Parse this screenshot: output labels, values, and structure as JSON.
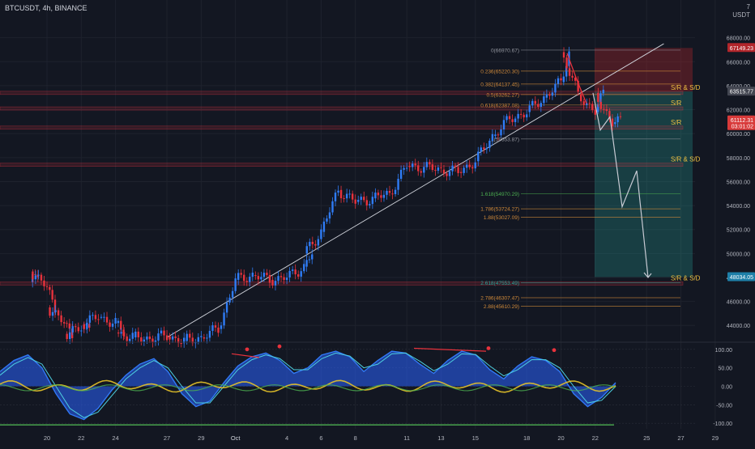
{
  "header": {
    "symbol": "BTCUSDT, 4h, BINANCE",
    "currency_top": "7",
    "currency": "USDT"
  },
  "chart_data": [
    {
      "type": "candlestick",
      "title": "BTCUSDT, 4h, BINANCE",
      "ylim": [
        42800,
        69800
      ],
      "y_ticks": [
        44000,
        46000,
        48000,
        50000,
        52000,
        54000,
        56000,
        58000,
        60000,
        62000,
        64000,
        66000,
        68000
      ],
      "x_ticks": [
        "20",
        "22",
        "24",
        "27",
        "29",
        "Oct",
        "4",
        "6",
        "8",
        "11",
        "13",
        "15",
        "18",
        "20",
        "22",
        "25",
        "27",
        "29"
      ],
      "price_series": [
        [
          "Sep 19",
          47600
        ],
        [
          "Sep 19",
          48500
        ],
        [
          "Sep 20",
          47200
        ],
        [
          "Sep 20",
          45500
        ],
        [
          "Sep 21",
          44200
        ],
        [
          "Sep 21",
          43300
        ],
        [
          "Sep 22",
          43700
        ],
        [
          "Sep 22",
          44100
        ],
        [
          "Sep 23",
          44700
        ],
        [
          "Sep 24",
          44200
        ],
        [
          "Sep 24",
          43400
        ],
        [
          "Sep 25",
          43000
        ],
        [
          "Sep 26",
          42900
        ],
        [
          "Sep 27",
          43100
        ],
        [
          "Sep 28",
          42700
        ],
        [
          "Sep 29",
          43000
        ],
        [
          "Sep 30",
          43700
        ],
        [
          "Oct 1",
          47800
        ],
        [
          "Oct 2",
          48200
        ],
        [
          "Oct 3",
          47800
        ],
        [
          "Oct 4",
          48000
        ],
        [
          "Oct 5",
          48900
        ],
        [
          "Oct 5",
          50000
        ],
        [
          "Oct 6",
          51800
        ],
        [
          "Oct 7",
          55300
        ],
        [
          "Oct 8",
          54300
        ],
        [
          "Oct 9",
          54600
        ],
        [
          "Oct 10",
          55000
        ],
        [
          "Oct 11",
          57300
        ],
        [
          "Oct 12",
          57200
        ],
        [
          "Oct 13",
          57000
        ],
        [
          "Oct 14",
          56800
        ],
        [
          "Oct 15",
          57700
        ],
        [
          "Oct 16",
          59800
        ],
        [
          "Oct 17",
          61200
        ],
        [
          "Oct 18",
          61800
        ],
        [
          "Oct 19",
          63000
        ],
        [
          "Oct 20",
          64300
        ],
        [
          "Oct 20",
          66800
        ],
        [
          "Oct 21",
          63300
        ],
        [
          "Oct 22",
          61800
        ],
        [
          "Oct 22",
          63400
        ],
        [
          "Oct 23",
          60800
        ],
        [
          "Oct 23",
          61100
        ]
      ],
      "projection": [
        [
          "Oct 22",
          63400
        ],
        [
          "Oct 23",
          60300
        ],
        [
          "Oct 24",
          61400
        ],
        [
          "Oct 25",
          53900
        ],
        [
          "Oct 26",
          56900
        ],
        [
          "Oct 27",
          48000
        ]
      ],
      "trendline": [
        [
          "Sep 27",
          43000
        ],
        [
          "Oct 26",
          67500
        ]
      ],
      "fib_levels": [
        {
          "ratio": "0",
          "value": "66970.67",
          "label": "0(66970.67)"
        },
        {
          "ratio": "0.236",
          "value": "65220.30",
          "label": "0.236(65220.30)"
        },
        {
          "ratio": "0.382",
          "value": "64137.45",
          "label": "0.382(64137.45)"
        },
        {
          "ratio": "0.5",
          "value": "63262.27",
          "label": "0.5(63262.27)"
        },
        {
          "ratio": "0.618",
          "value": "62387.08",
          "label": "0.618(62387.08)"
        },
        {
          "ratio": "1",
          "value": "59553.87",
          "label": "1(59553.87)"
        },
        {
          "ratio": "1.618",
          "value": "54970.29",
          "label": "1.618(54970.29)"
        },
        {
          "ratio": "1.786",
          "value": "53724.27",
          "label": "1.786(53724.27)"
        },
        {
          "ratio": "1.88",
          "value": "53027.09",
          "label": "1.88(53027.09)"
        },
        {
          "ratio": "2.618",
          "value": "47553.49",
          "label": "2.618(47553.49)"
        },
        {
          "ratio": "2.786",
          "value": "46307.47",
          "label": "2.786(46307.47)"
        },
        {
          "ratio": "2.88",
          "value": "45610.29",
          "label": "2.88(45610.29)"
        }
      ],
      "zones": [
        {
          "label": "S/R & S/D",
          "value": 63400,
          "color": "#f0c040"
        },
        {
          "label": "S/R",
          "value": 62100,
          "color": "#f0c040"
        },
        {
          "label": "S/R",
          "value": 60500,
          "color": "#f0c040"
        },
        {
          "label": "S/R & S/D",
          "value": 57400,
          "color": "#f0c040"
        },
        {
          "label": "S/R & S/D",
          "value": 47500,
          "color": "#f0c040"
        }
      ],
      "price_badges": [
        {
          "text": "67149.23",
          "value": 67149.23,
          "color": "#b2262b"
        },
        {
          "text": "63515.77",
          "value": 63515.77,
          "color": "#434651"
        },
        {
          "text": "61112.31",
          "sub": "03:01:02",
          "value": 61112.31,
          "color": "#d83a3a"
        },
        {
          "text": "48034.05",
          "value": 48034.05,
          "color": "#1e7fa8"
        }
      ],
      "position": {
        "stop": 67149.23,
        "entry": 63515.77,
        "target": 48034.05
      }
    },
    {
      "type": "line",
      "panel": "oscillator",
      "ylim": [
        -115,
        115
      ],
      "y_ticks": [
        "100.00",
        "50.00",
        "0.00",
        "-50.00",
        "-100.00"
      ],
      "series": [
        {
          "color": "#3179f5",
          "values": [
            40,
            70,
            85,
            50,
            -20,
            -75,
            -90,
            -60,
            -10,
            30,
            60,
            75,
            40,
            -20,
            -55,
            -40,
            10,
            55,
            80,
            90,
            70,
            35,
            50,
            85,
            95,
            80,
            40,
            70,
            95,
            90,
            60,
            35,
            70,
            95,
            85,
            45,
            20,
            55,
            80,
            70,
            40,
            -20,
            -55,
            -30,
            10
          ]
        },
        {
          "color": "#4dd0e1",
          "values": [
            30,
            60,
            78,
            60,
            0,
            -60,
            -85,
            -70,
            -25,
            20,
            50,
            70,
            50,
            0,
            -45,
            -45,
            0,
            45,
            72,
            85,
            75,
            45,
            45,
            75,
            90,
            82,
            50,
            60,
            88,
            90,
            68,
            42,
            60,
            88,
            86,
            55,
            28,
            45,
            72,
            72,
            50,
            0,
            -45,
            -38,
            0
          ]
        }
      ]
    }
  ]
}
